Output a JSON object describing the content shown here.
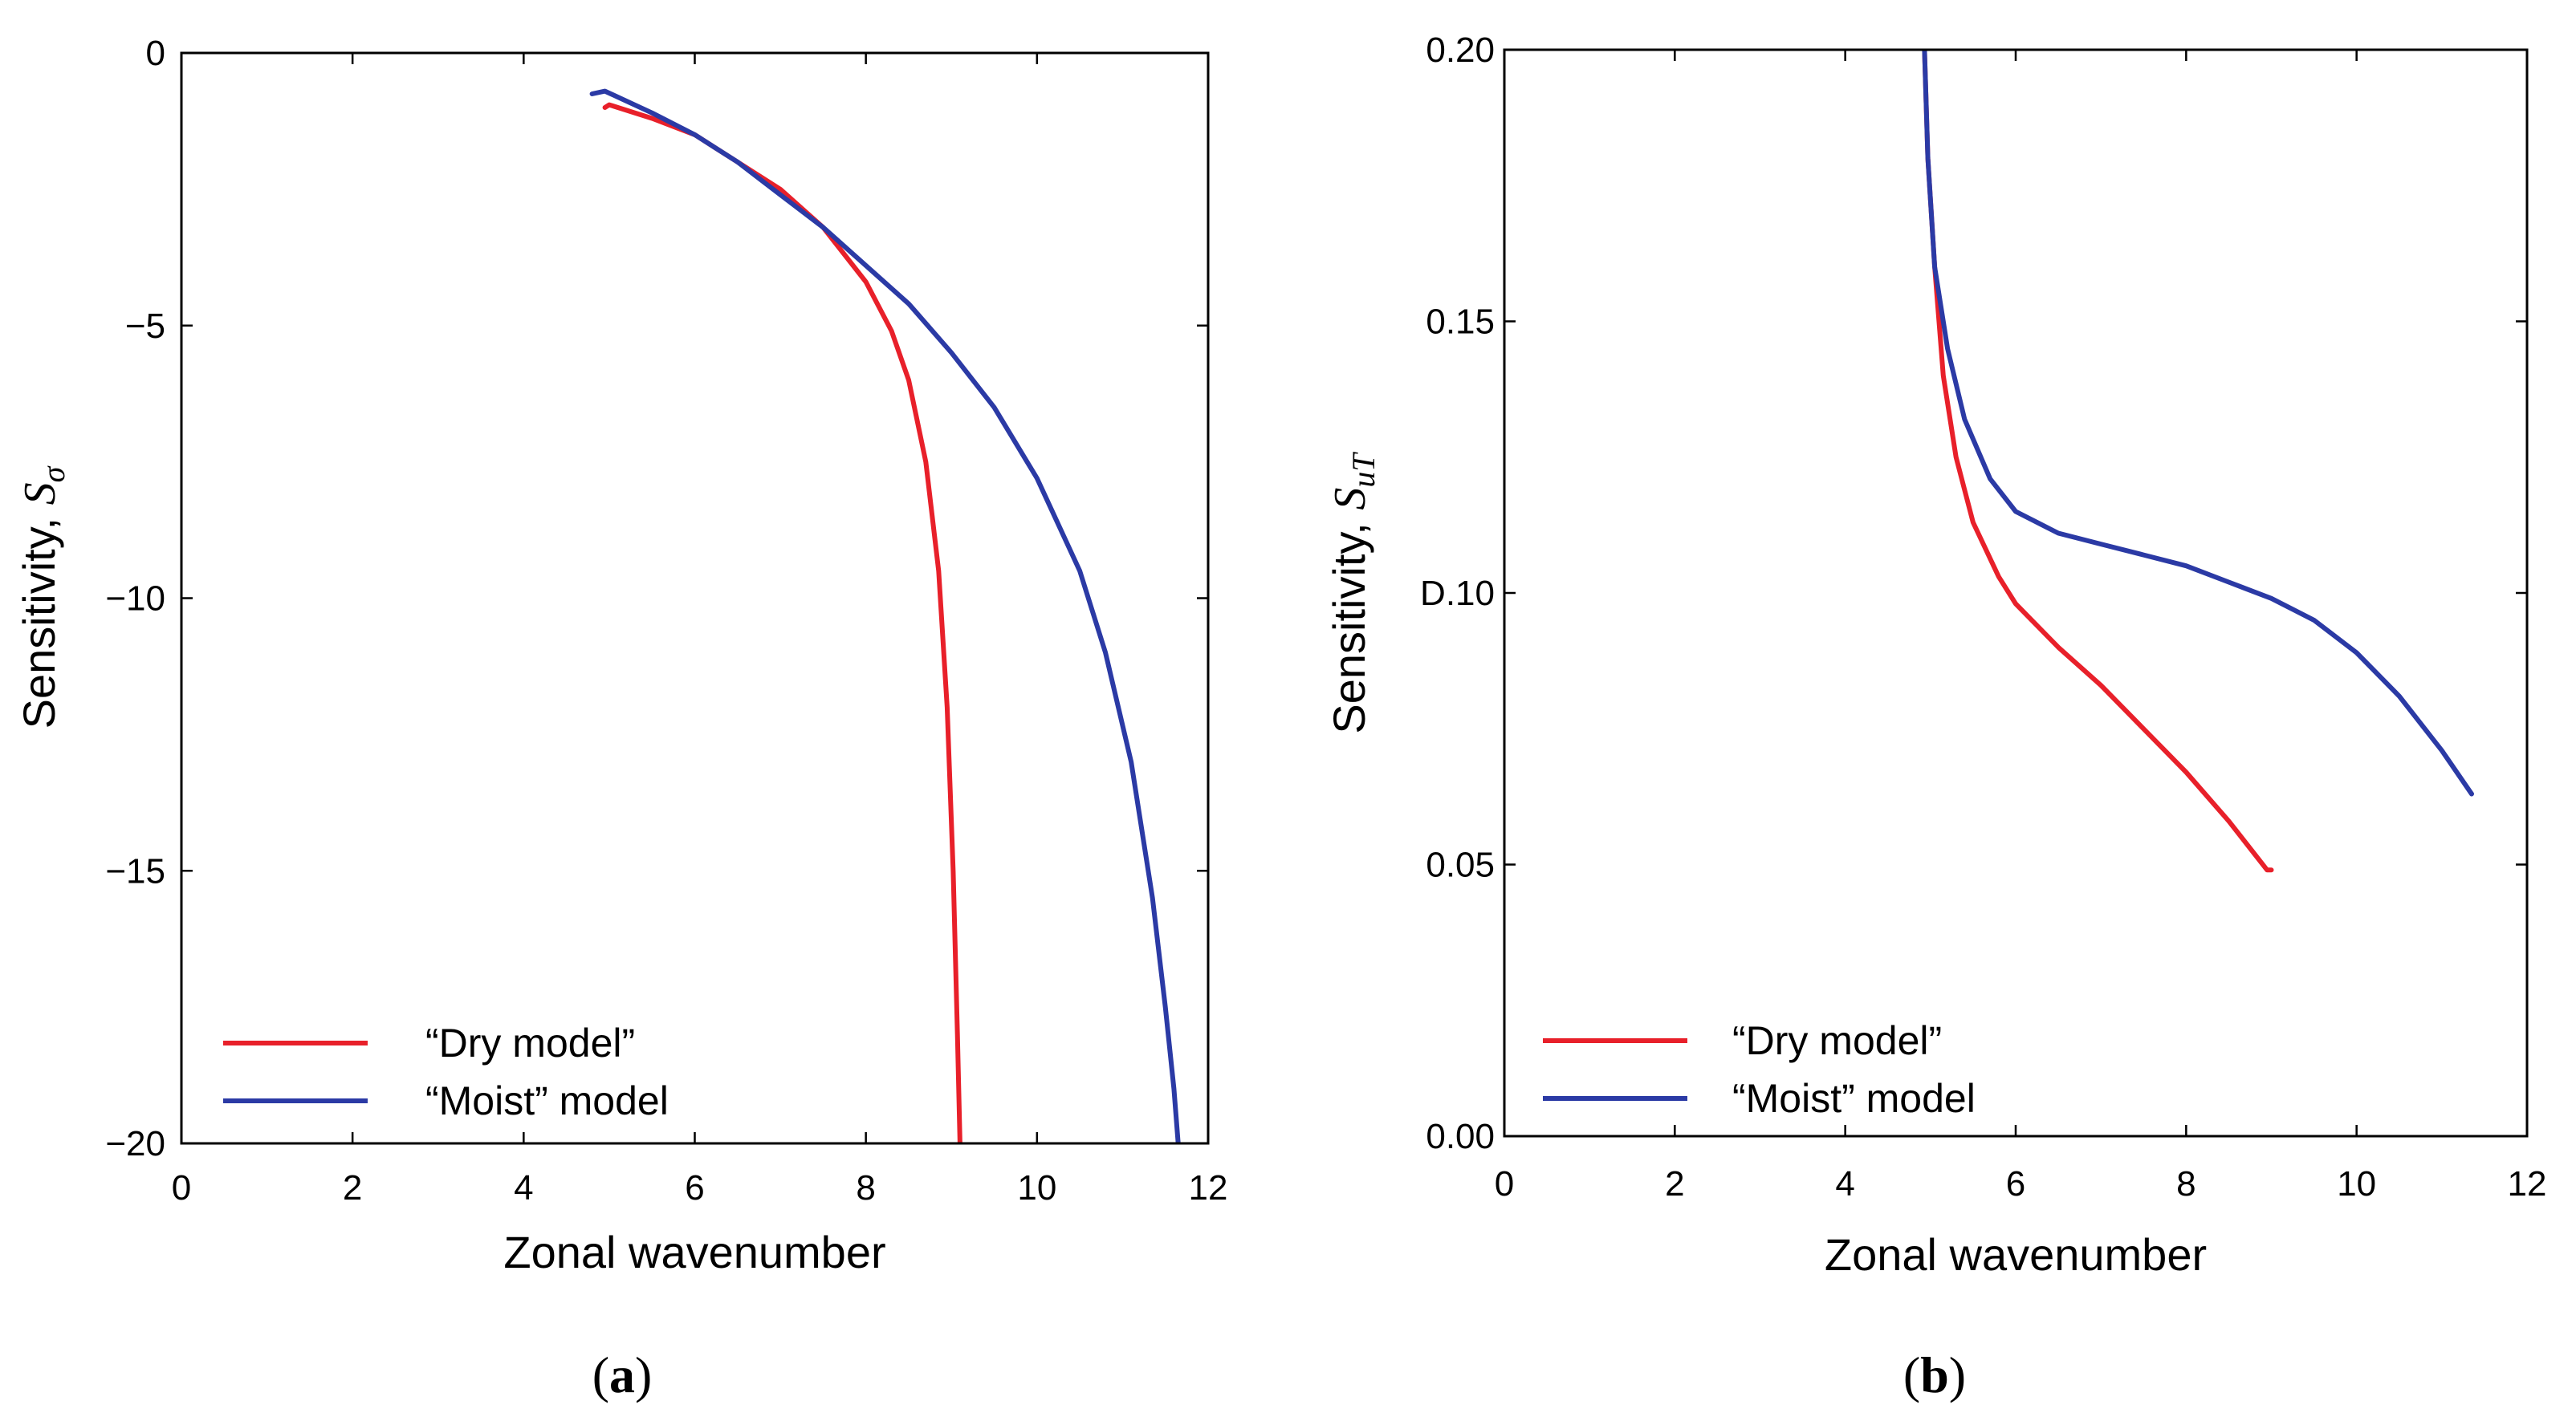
{
  "chart_data": [
    {
      "type": "line",
      "panel_label": "(a)",
      "xlabel": "Zonal wavenumber",
      "ylabel_main": "Sensitivity, ",
      "ylabel_symbol": "S",
      "ylabel_subscript": "σ",
      "xlim": [
        0,
        12
      ],
      "ylim": [
        -20,
        0
      ],
      "xticks": [
        0,
        2,
        4,
        6,
        8,
        10,
        12
      ],
      "yticks": [
        0,
        -5,
        -10,
        -15,
        -20
      ],
      "ytick_labels": [
        "0",
        "−5",
        "−10",
        "−15",
        "−20"
      ],
      "xtick_labels": [
        "0",
        "2",
        "4",
        "6",
        "8",
        "10",
        "12"
      ],
      "legend_position": "lower-left",
      "series": [
        {
          "name": "“Dry model”",
          "color": "#e8202a",
          "points": [
            [
              4.95,
              -1.0
            ],
            [
              5.0,
              -0.95
            ],
            [
              5.5,
              -1.2
            ],
            [
              6.0,
              -1.5
            ],
            [
              6.5,
              -2.0
            ],
            [
              7.0,
              -2.5
            ],
            [
              7.5,
              -3.2
            ],
            [
              8.0,
              -4.2
            ],
            [
              8.3,
              -5.1
            ],
            [
              8.5,
              -6.0
            ],
            [
              8.7,
              -7.5
            ],
            [
              8.85,
              -9.5
            ],
            [
              8.95,
              -12.0
            ],
            [
              9.02,
              -15.0
            ],
            [
              9.07,
              -18.0
            ],
            [
              9.1,
              -20.0
            ]
          ]
        },
        {
          "name": "“Moist” model",
          "color": "#2b3aa5",
          "points": [
            [
              4.8,
              -0.75
            ],
            [
              4.95,
              -0.7
            ],
            [
              5.5,
              -1.1
            ],
            [
              6.0,
              -1.5
            ],
            [
              6.5,
              -2.0
            ],
            [
              7.0,
              -2.6
            ],
            [
              7.5,
              -3.2
            ],
            [
              8.0,
              -3.9
            ],
            [
              8.5,
              -4.6
            ],
            [
              9.0,
              -5.5
            ],
            [
              9.5,
              -6.5
            ],
            [
              10.0,
              -7.8
            ],
            [
              10.5,
              -9.5
            ],
            [
              10.8,
              -11.0
            ],
            [
              11.1,
              -13.0
            ],
            [
              11.35,
              -15.5
            ],
            [
              11.5,
              -17.5
            ],
            [
              11.6,
              -19.0
            ],
            [
              11.65,
              -20.0
            ]
          ]
        }
      ]
    },
    {
      "type": "line",
      "panel_label": "(b)",
      "xlabel": "Zonal wavenumber",
      "ylabel_main": "Sensitivity, ",
      "ylabel_symbol": "S",
      "ylabel_subscript": "uT",
      "xlim": [
        0,
        12
      ],
      "ylim": [
        0.0,
        0.2
      ],
      "xticks": [
        0,
        2,
        4,
        6,
        8,
        10,
        12
      ],
      "yticks": [
        0.0,
        0.05,
        0.1,
        0.15,
        0.2
      ],
      "ytick_labels": [
        "0.00",
        "0.05",
        "D.10",
        "0.15",
        "0.20"
      ],
      "xtick_labels": [
        "0",
        "2",
        "4",
        "6",
        "8",
        "10",
        "12"
      ],
      "legend_position": "lower-left",
      "series": [
        {
          "name": "“Dry model”",
          "color": "#e8202a",
          "points": [
            [
              4.93,
              0.2
            ],
            [
              4.97,
              0.18
            ],
            [
              5.05,
              0.16
            ],
            [
              5.15,
              0.14
            ],
            [
              5.3,
              0.125
            ],
            [
              5.5,
              0.113
            ],
            [
              5.8,
              0.103
            ],
            [
              6.0,
              0.098
            ],
            [
              6.5,
              0.09
            ],
            [
              7.0,
              0.083
            ],
            [
              7.5,
              0.075
            ],
            [
              8.0,
              0.067
            ],
            [
              8.5,
              0.058
            ],
            [
              8.8,
              0.052
            ],
            [
              8.95,
              0.049
            ],
            [
              9.0,
              0.049
            ]
          ]
        },
        {
          "name": "“Moist” model",
          "color": "#2b3aa5",
          "points": [
            [
              4.93,
              0.2
            ],
            [
              4.97,
              0.18
            ],
            [
              5.05,
              0.16
            ],
            [
              5.2,
              0.145
            ],
            [
              5.4,
              0.132
            ],
            [
              5.7,
              0.121
            ],
            [
              6.0,
              0.115
            ],
            [
              6.5,
              0.111
            ],
            [
              7.0,
              0.109
            ],
            [
              7.5,
              0.107
            ],
            [
              8.0,
              0.105
            ],
            [
              8.5,
              0.102
            ],
            [
              9.0,
              0.099
            ],
            [
              9.5,
              0.095
            ],
            [
              10.0,
              0.089
            ],
            [
              10.5,
              0.081
            ],
            [
              11.0,
              0.071
            ],
            [
              11.35,
              0.063
            ]
          ]
        }
      ]
    }
  ]
}
